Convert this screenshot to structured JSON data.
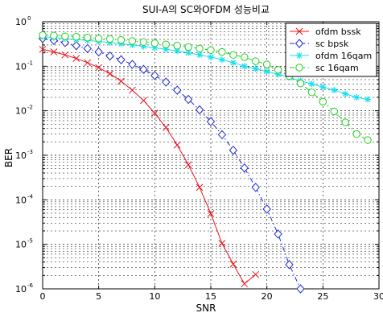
{
  "chart_data": {
    "type": "line",
    "title": "SUI-A의  SC와OFDM 성능비교",
    "xlabel": "SNR",
    "ylabel": "BER",
    "xlim": [
      0,
      30
    ],
    "ylim_exponent": [
      -6,
      0
    ],
    "y_scale": "log",
    "x_ticks": [
      0,
      5,
      10,
      15,
      20,
      25,
      30
    ],
    "y_tick_labels": [
      {
        "base": "10",
        "exp": "0"
      },
      {
        "base": "10",
        "exp": "-1"
      },
      {
        "base": "10",
        "exp": "-2"
      },
      {
        "base": "10",
        "exp": "-3"
      },
      {
        "base": "10",
        "exp": "-4"
      },
      {
        "base": "10",
        "exp": "-5"
      },
      {
        "base": "10",
        "exp": "-6"
      }
    ],
    "grid": true,
    "legend_position": "top-right",
    "series": [
      {
        "name": "ofdm bssk",
        "color": "#e8141e",
        "marker": "x",
        "dash": "solid",
        "x": [
          0,
          1,
          2,
          3,
          4,
          5,
          6,
          7,
          8,
          9,
          10,
          11,
          12,
          13,
          14,
          15,
          16,
          17,
          18,
          19
        ],
        "y": [
          0.24,
          0.21,
          0.18,
          0.15,
          0.12,
          0.093,
          0.068,
          0.046,
          0.029,
          0.017,
          0.0088,
          0.0042,
          0.0017,
          0.00061,
          0.00019,
          4.9e-05,
          1.05e-05,
          3.6e-06,
          1.3e-06,
          2.1e-06
        ]
      },
      {
        "name": "sc bpsk",
        "color": "#1e2ad0",
        "marker": "diamond",
        "dash": "dashdot",
        "x": [
          0,
          1,
          2,
          3,
          4,
          5,
          6,
          7,
          8,
          9,
          10,
          11,
          12,
          13,
          14,
          15,
          16,
          17,
          18,
          19,
          20,
          21,
          22,
          23
        ],
        "y": [
          0.42,
          0.38,
          0.34,
          0.29,
          0.25,
          0.21,
          0.17,
          0.14,
          0.11,
          0.085,
          0.062,
          0.044,
          0.029,
          0.018,
          0.0105,
          0.0057,
          0.0029,
          0.0013,
          0.00052,
          0.00019,
          6.2e-05,
          1.7e-05,
          3.5e-06,
          1e-06
        ]
      },
      {
        "name": "ofdm 16qam",
        "color": "#18e0f0",
        "marker": "star",
        "dash": "solid",
        "x": [
          0,
          1,
          2,
          3,
          4,
          5,
          6,
          7,
          8,
          9,
          10,
          11,
          12,
          13,
          14,
          15,
          16,
          17,
          18,
          19,
          20,
          21,
          22,
          23,
          24,
          25,
          26,
          27,
          28,
          29
        ],
        "y": [
          0.46,
          0.44,
          0.42,
          0.4,
          0.38,
          0.36,
          0.34,
          0.32,
          0.3,
          0.28,
          0.26,
          0.24,
          0.22,
          0.2,
          0.18,
          0.16,
          0.14,
          0.12,
          0.1,
          0.088,
          0.076,
          0.066,
          0.056,
          0.047,
          0.04,
          0.034,
          0.029,
          0.024,
          0.02,
          0.018
        ]
      },
      {
        "name": "sc 16qam",
        "color": "#1ed21e",
        "marker": "circle",
        "dash": "dashdot",
        "x": [
          0,
          1,
          2,
          3,
          4,
          5,
          6,
          7,
          8,
          9,
          10,
          11,
          12,
          13,
          14,
          15,
          16,
          17,
          18,
          19,
          20,
          21,
          22,
          23,
          24,
          25,
          26,
          27,
          28,
          29
        ],
        "y": [
          0.5,
          0.49,
          0.47,
          0.46,
          0.44,
          0.42,
          0.41,
          0.39,
          0.37,
          0.35,
          0.33,
          0.31,
          0.29,
          0.27,
          0.25,
          0.23,
          0.21,
          0.18,
          0.16,
          0.13,
          0.11,
          0.083,
          0.06,
          0.041,
          0.026,
          0.016,
          0.0097,
          0.0055,
          0.003,
          0.0022
        ]
      }
    ]
  }
}
